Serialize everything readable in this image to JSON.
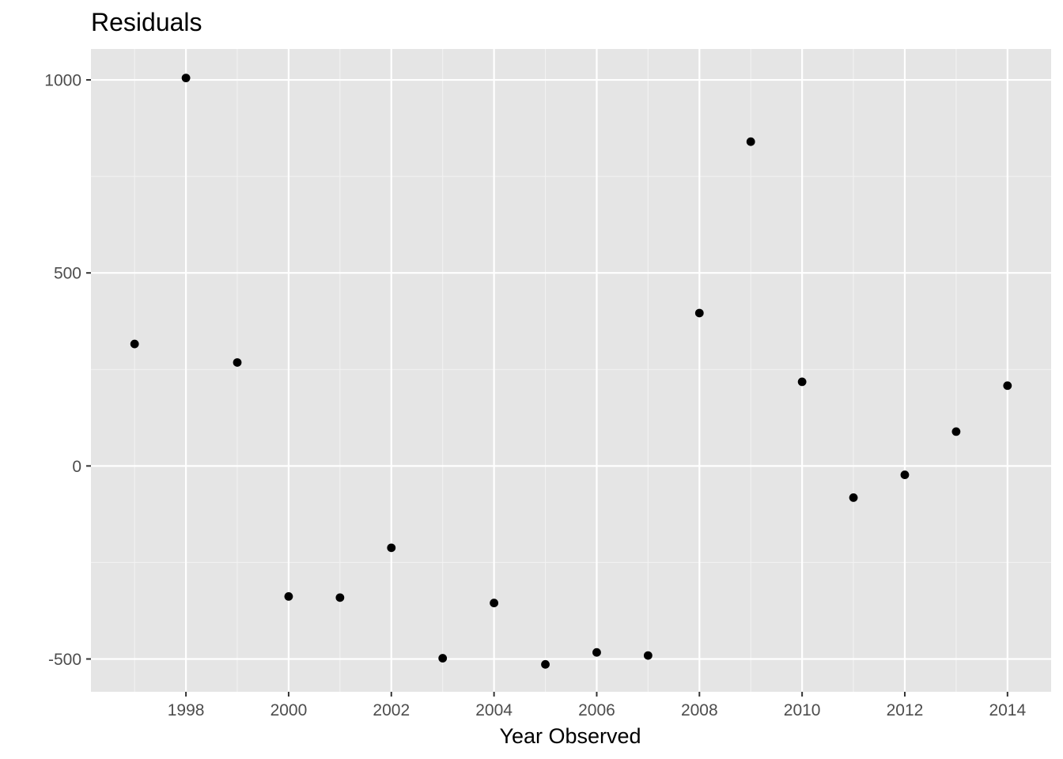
{
  "colors": {
    "panel_background": "#e5e5e5",
    "grid_major": "#ffffff",
    "grid_minor": "#f2f2f2",
    "point": "#000000",
    "tick_text": "#4d4d4d",
    "tick_mark": "#333333"
  },
  "chart_data": {
    "type": "scatter",
    "title": "Residuals",
    "xlabel": "Year Observed",
    "ylabel": "",
    "xlim": [
      1996.15,
      2014.85
    ],
    "ylim": [
      -585,
      1080
    ],
    "x_ticks": [
      1998,
      2000,
      2002,
      2004,
      2006,
      2008,
      2010,
      2012,
      2014
    ],
    "x_tick_labels": [
      "1998",
      "2000",
      "2002",
      "2004",
      "2006",
      "2008",
      "2010",
      "2012",
      "2014"
    ],
    "x_minor_gridlines": [
      1997,
      1999,
      2001,
      2003,
      2005,
      2007,
      2009,
      2011,
      2013
    ],
    "y_ticks": [
      -500,
      0,
      500,
      1000
    ],
    "y_tick_labels": [
      "-500",
      "0",
      "500",
      "1000"
    ],
    "y_minor_gridlines": [
      -250,
      250,
      750
    ],
    "grid": true,
    "legend": "none",
    "series": [
      {
        "x": [
          1997,
          1998,
          1999,
          2000,
          2001,
          2002,
          2003,
          2004,
          2005,
          2006,
          2007,
          2008,
          2009,
          2010,
          2011,
          2012,
          2013,
          2014
        ],
        "y": [
          316,
          1005,
          268,
          -338,
          -341,
          -212,
          -498,
          -355,
          -514,
          -483,
          -491,
          396,
          840,
          218,
          -82,
          -23,
          89,
          208
        ]
      }
    ]
  }
}
